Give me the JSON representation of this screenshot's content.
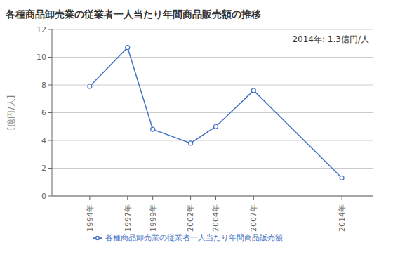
{
  "chart_data": {
    "type": "line",
    "title": "各種商品卸売業の従業者一人当たり年間商品販売額の推移",
    "y_label": "[億円/人]",
    "annotation": "2014年: 1.3億円/人",
    "x": [
      1994,
      1997,
      1999,
      2002,
      2004,
      2007,
      2014
    ],
    "series": [
      {
        "name": "各種商品卸売業の従業者一人当たり年間商品販売額",
        "color": "#4472C4",
        "marker": "circle",
        "values": [
          7.9,
          10.7,
          4.8,
          3.8,
          5.0,
          7.6,
          1.3
        ]
      }
    ],
    "xlim": [
      1991,
      2016.5
    ],
    "xticks": [
      {
        "value": 1994,
        "label": "1994年"
      },
      {
        "value": 1997,
        "label": "1997年"
      },
      {
        "value": 1999,
        "label": "1999年"
      },
      {
        "value": 2002,
        "label": "2002年"
      },
      {
        "value": 2004,
        "label": "2004年"
      },
      {
        "value": 2007,
        "label": "2007年"
      },
      {
        "value": 2014,
        "label": "2014年"
      }
    ],
    "ylim": [
      0,
      12
    ],
    "yticks": [
      0,
      2,
      4,
      6,
      8,
      10,
      12
    ],
    "grid": "y",
    "legend": "bottom"
  }
}
